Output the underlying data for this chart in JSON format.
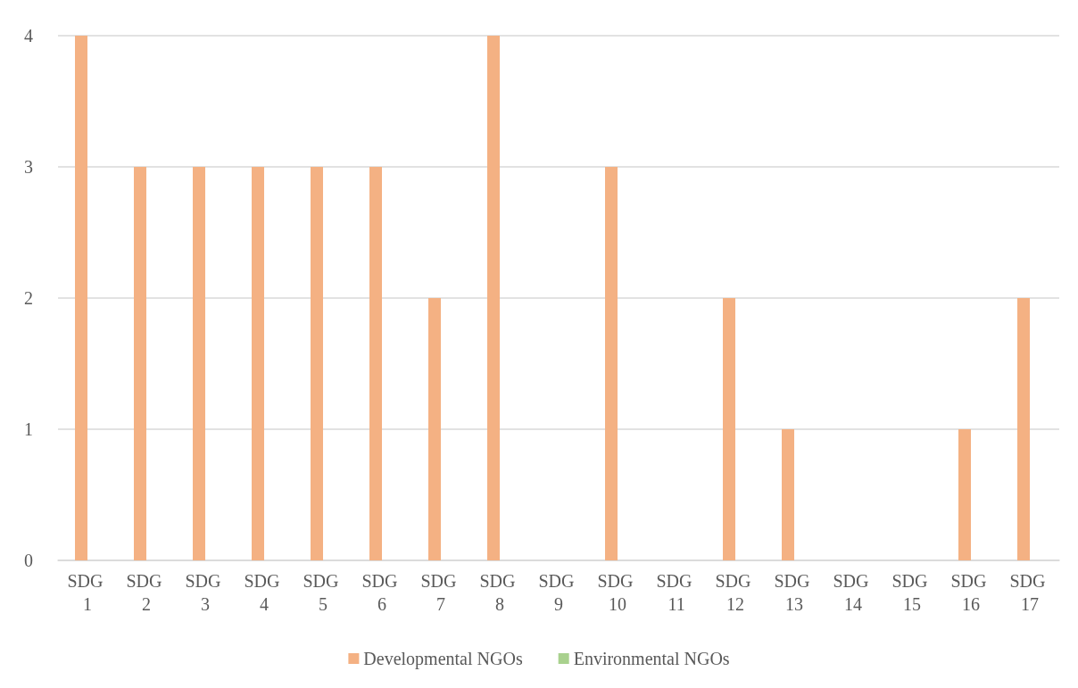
{
  "chart_data": {
    "type": "bar",
    "categories": [
      "SDG 1",
      "SDG 2",
      "SDG 3",
      "SDG 4",
      "SDG 5",
      "SDG 6",
      "SDG 7",
      "SDG 8",
      "SDG 9",
      "SDG 10",
      "SDG 11",
      "SDG 12",
      "SDG 13",
      "SDG 14",
      "SDG 15",
      "SDG 16",
      "SDG 17"
    ],
    "series": [
      {
        "name": "Developmental NGOs",
        "color": "#f4b183",
        "values": [
          4,
          3,
          3,
          3,
          3,
          3,
          2,
          4,
          0,
          3,
          0,
          2,
          1,
          0,
          0,
          1,
          2
        ]
      },
      {
        "name": "Environmental NGOs",
        "color": "#a9d18e",
        "values": [
          0,
          0,
          0,
          0,
          0,
          0,
          0,
          0,
          0,
          0,
          0,
          0,
          0,
          0,
          0,
          0,
          0
        ]
      }
    ],
    "ylim": [
      0,
      4
    ],
    "yticks": [
      0,
      1,
      2,
      3,
      4
    ],
    "grid": "y",
    "legend": "bottom"
  }
}
